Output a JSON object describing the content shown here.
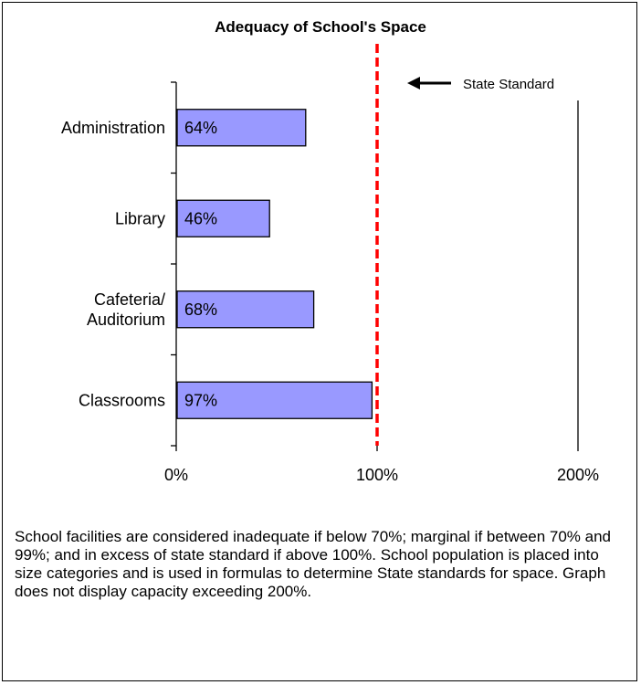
{
  "chart_data": {
    "type": "bar",
    "orientation": "horizontal",
    "title": "Adequacy of School's Space",
    "categories": [
      "Administration",
      "Library",
      "Cafeteria/\nAuditorium",
      "Classrooms"
    ],
    "values": [
      64,
      46,
      68,
      97
    ],
    "data_labels": [
      "64%",
      "46%",
      "68%",
      "97%"
    ],
    "xlim": [
      0,
      200
    ],
    "xticks": [
      0,
      100,
      200
    ],
    "xtick_labels": [
      "0%",
      "100%",
      "200%"
    ],
    "xlabel": "",
    "ylabel": "",
    "grid": false,
    "bar_color": "#9999ff",
    "reference_line": {
      "value": 100,
      "label": "State Standard",
      "color": "#ff0000",
      "style": "dashed"
    }
  },
  "note": "School facilities are considered inadequate if below 70%; marginal if between 70% and 99%; and in excess of state standard if above 100%.  School population is placed into size categories and is used in formulas to determine State standards for space.  Graph does not display capacity exceeding 200%."
}
